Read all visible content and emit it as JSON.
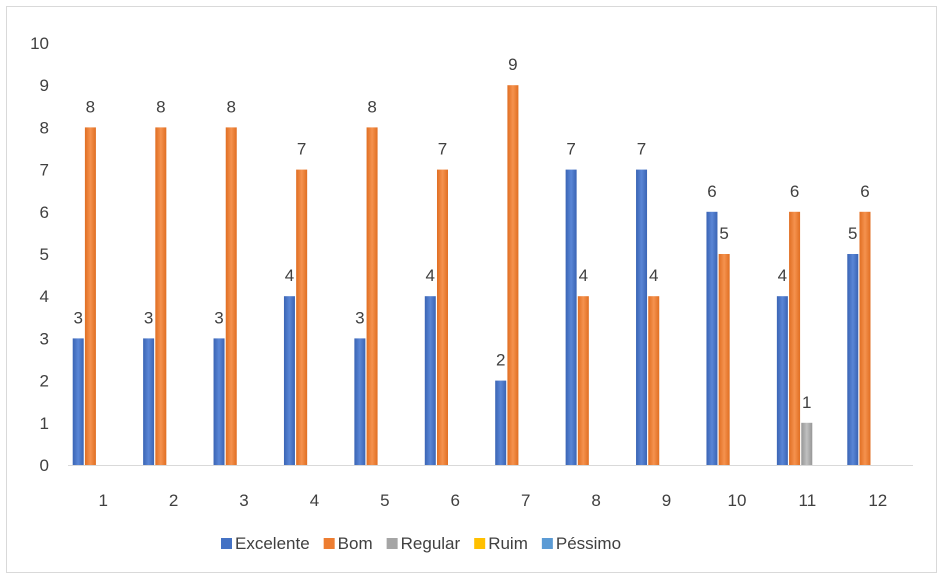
{
  "chart_data": {
    "type": "bar",
    "categories": [
      "1",
      "2",
      "3",
      "4",
      "5",
      "6",
      "7",
      "8",
      "9",
      "10",
      "11",
      "12"
    ],
    "series": [
      {
        "name": "Excelente",
        "color": "#4472c4",
        "values": [
          3,
          3,
          3,
          4,
          3,
          4,
          2,
          7,
          7,
          6,
          4,
          5
        ]
      },
      {
        "name": "Bom",
        "color": "#ed7d31",
        "values": [
          8,
          8,
          8,
          7,
          8,
          7,
          9,
          4,
          4,
          5,
          6,
          6
        ]
      },
      {
        "name": "Regular",
        "color": "#a5a5a5",
        "values": [
          null,
          null,
          null,
          null,
          null,
          null,
          null,
          null,
          null,
          null,
          1,
          null
        ]
      },
      {
        "name": "Ruim",
        "color": "#ffc000",
        "values": [
          null,
          null,
          null,
          null,
          null,
          null,
          null,
          null,
          null,
          null,
          null,
          null
        ]
      },
      {
        "name": "Péssimo",
        "color": "#5b9bd5",
        "values": [
          null,
          null,
          null,
          null,
          null,
          null,
          null,
          null,
          null,
          null,
          null,
          null
        ]
      }
    ],
    "yticks": [
      "0",
      "1",
      "2",
      "3",
      "4",
      "5",
      "6",
      "7",
      "8",
      "9",
      "10"
    ],
    "ylim": [
      0,
      10
    ],
    "grid": false,
    "legend_position": "bottom"
  }
}
